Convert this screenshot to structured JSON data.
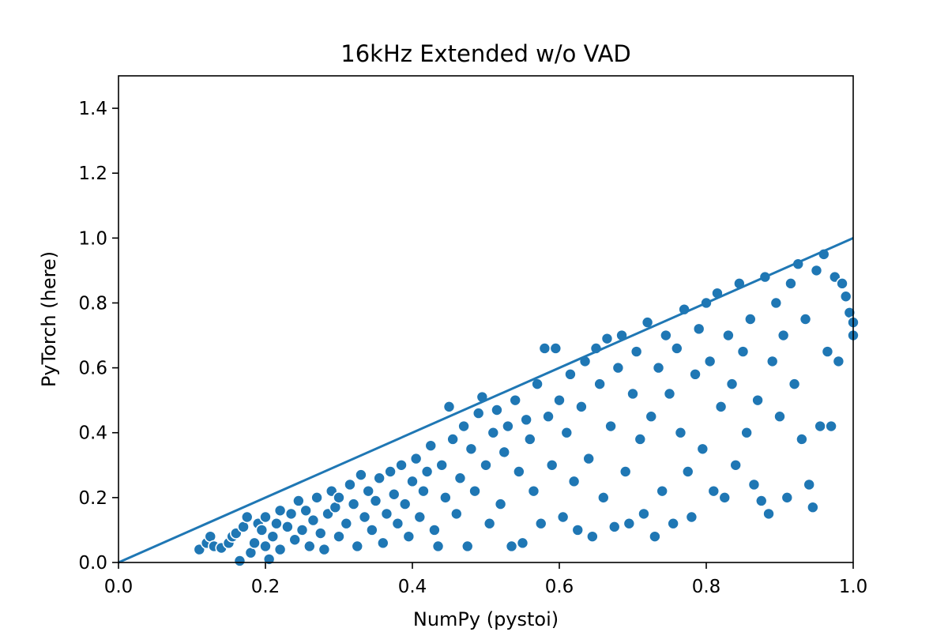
{
  "chart_data": {
    "type": "scatter",
    "title": "16kHz Extended w/o VAD",
    "xlabel": "NumPy (pystoi)",
    "ylabel": "PyTorch (here)",
    "xlim": [
      0.0,
      1.0
    ],
    "ylim": [
      0.0,
      1.5
    ],
    "xticks": [
      "0.0",
      "0.2",
      "0.4",
      "0.6",
      "0.8",
      "1.0"
    ],
    "xtick_values": [
      0.0,
      0.2,
      0.4,
      0.6,
      0.8,
      1.0
    ],
    "yticks": [
      "0.0",
      "0.2",
      "0.4",
      "0.6",
      "0.8",
      "1.0",
      "1.2",
      "1.4"
    ],
    "ytick_values": [
      0.0,
      0.2,
      0.4,
      0.6,
      0.8,
      1.0,
      1.2,
      1.4
    ],
    "grid": false,
    "colors": {
      "marker": "#1f77b4",
      "marker_edge": "#ffffff",
      "line": "#1f77b4"
    },
    "reference_line": {
      "name": "y = x",
      "x": [
        0.0,
        1.0
      ],
      "y": [
        0.0,
        1.0
      ]
    },
    "series": [
      {
        "name": "samples",
        "points": [
          [
            0.11,
            0.04
          ],
          [
            0.12,
            0.06
          ],
          [
            0.125,
            0.08
          ],
          [
            0.13,
            0.05
          ],
          [
            0.14,
            0.045
          ],
          [
            0.15,
            0.06
          ],
          [
            0.155,
            0.08
          ],
          [
            0.16,
            0.09
          ],
          [
            0.165,
            0.005
          ],
          [
            0.17,
            0.11
          ],
          [
            0.175,
            0.14
          ],
          [
            0.18,
            0.03
          ],
          [
            0.185,
            0.06
          ],
          [
            0.19,
            0.12
          ],
          [
            0.195,
            0.1
          ],
          [
            0.2,
            0.05
          ],
          [
            0.2,
            0.14
          ],
          [
            0.205,
            0.01
          ],
          [
            0.21,
            0.08
          ],
          [
            0.215,
            0.12
          ],
          [
            0.22,
            0.16
          ],
          [
            0.22,
            0.04
          ],
          [
            0.23,
            0.11
          ],
          [
            0.235,
            0.15
          ],
          [
            0.24,
            0.07
          ],
          [
            0.245,
            0.19
          ],
          [
            0.25,
            0.1
          ],
          [
            0.255,
            0.16
          ],
          [
            0.26,
            0.05
          ],
          [
            0.265,
            0.13
          ],
          [
            0.27,
            0.2
          ],
          [
            0.275,
            0.09
          ],
          [
            0.28,
            0.04
          ],
          [
            0.285,
            0.15
          ],
          [
            0.29,
            0.22
          ],
          [
            0.295,
            0.17
          ],
          [
            0.3,
            0.2
          ],
          [
            0.3,
            0.08
          ],
          [
            0.31,
            0.12
          ],
          [
            0.315,
            0.24
          ],
          [
            0.32,
            0.18
          ],
          [
            0.325,
            0.05
          ],
          [
            0.33,
            0.27
          ],
          [
            0.335,
            0.14
          ],
          [
            0.34,
            0.22
          ],
          [
            0.345,
            0.1
          ],
          [
            0.35,
            0.19
          ],
          [
            0.355,
            0.26
          ],
          [
            0.36,
            0.06
          ],
          [
            0.365,
            0.15
          ],
          [
            0.37,
            0.28
          ],
          [
            0.375,
            0.21
          ],
          [
            0.38,
            0.12
          ],
          [
            0.385,
            0.3
          ],
          [
            0.39,
            0.18
          ],
          [
            0.395,
            0.08
          ],
          [
            0.4,
            0.25
          ],
          [
            0.405,
            0.32
          ],
          [
            0.41,
            0.14
          ],
          [
            0.415,
            0.22
          ],
          [
            0.42,
            0.28
          ],
          [
            0.425,
            0.36
          ],
          [
            0.43,
            0.1
          ],
          [
            0.435,
            0.05
          ],
          [
            0.44,
            0.3
          ],
          [
            0.445,
            0.2
          ],
          [
            0.45,
            0.48
          ],
          [
            0.455,
            0.38
          ],
          [
            0.46,
            0.15
          ],
          [
            0.465,
            0.26
          ],
          [
            0.47,
            0.42
          ],
          [
            0.475,
            0.05
          ],
          [
            0.48,
            0.35
          ],
          [
            0.485,
            0.22
          ],
          [
            0.49,
            0.46
          ],
          [
            0.495,
            0.51
          ],
          [
            0.5,
            0.3
          ],
          [
            0.505,
            0.12
          ],
          [
            0.51,
            0.4
          ],
          [
            0.515,
            0.47
          ],
          [
            0.52,
            0.18
          ],
          [
            0.525,
            0.34
          ],
          [
            0.53,
            0.42
          ],
          [
            0.535,
            0.05
          ],
          [
            0.54,
            0.5
          ],
          [
            0.545,
            0.28
          ],
          [
            0.55,
            0.06
          ],
          [
            0.555,
            0.44
          ],
          [
            0.56,
            0.38
          ],
          [
            0.565,
            0.22
          ],
          [
            0.57,
            0.55
          ],
          [
            0.575,
            0.12
          ],
          [
            0.58,
            0.66
          ],
          [
            0.585,
            0.45
          ],
          [
            0.59,
            0.3
          ],
          [
            0.595,
            0.66
          ],
          [
            0.6,
            0.5
          ],
          [
            0.605,
            0.14
          ],
          [
            0.61,
            0.4
          ],
          [
            0.615,
            0.58
          ],
          [
            0.62,
            0.25
          ],
          [
            0.625,
            0.1
          ],
          [
            0.63,
            0.48
          ],
          [
            0.635,
            0.62
          ],
          [
            0.64,
            0.32
          ],
          [
            0.645,
            0.08
          ],
          [
            0.65,
            0.66
          ],
          [
            0.655,
            0.55
          ],
          [
            0.66,
            0.2
          ],
          [
            0.665,
            0.69
          ],
          [
            0.67,
            0.42
          ],
          [
            0.675,
            0.11
          ],
          [
            0.68,
            0.6
          ],
          [
            0.685,
            0.7
          ],
          [
            0.69,
            0.28
          ],
          [
            0.695,
            0.12
          ],
          [
            0.7,
            0.52
          ],
          [
            0.705,
            0.65
          ],
          [
            0.71,
            0.38
          ],
          [
            0.715,
            0.15
          ],
          [
            0.72,
            0.74
          ],
          [
            0.725,
            0.45
          ],
          [
            0.73,
            0.08
          ],
          [
            0.735,
            0.6
          ],
          [
            0.74,
            0.22
          ],
          [
            0.745,
            0.7
          ],
          [
            0.75,
            0.52
          ],
          [
            0.755,
            0.12
          ],
          [
            0.76,
            0.66
          ],
          [
            0.765,
            0.4
          ],
          [
            0.77,
            0.78
          ],
          [
            0.775,
            0.28
          ],
          [
            0.78,
            0.14
          ],
          [
            0.785,
            0.58
          ],
          [
            0.79,
            0.72
          ],
          [
            0.795,
            0.35
          ],
          [
            0.8,
            0.8
          ],
          [
            0.805,
            0.62
          ],
          [
            0.81,
            0.22
          ],
          [
            0.815,
            0.83
          ],
          [
            0.82,
            0.48
          ],
          [
            0.825,
            0.2
          ],
          [
            0.83,
            0.7
          ],
          [
            0.835,
            0.55
          ],
          [
            0.84,
            0.3
          ],
          [
            0.845,
            0.86
          ],
          [
            0.85,
            0.65
          ],
          [
            0.855,
            0.4
          ],
          [
            0.86,
            0.75
          ],
          [
            0.865,
            0.24
          ],
          [
            0.87,
            0.5
          ],
          [
            0.875,
            0.19
          ],
          [
            0.88,
            0.88
          ],
          [
            0.885,
            0.15
          ],
          [
            0.89,
            0.62
          ],
          [
            0.895,
            0.8
          ],
          [
            0.9,
            0.45
          ],
          [
            0.905,
            0.7
          ],
          [
            0.91,
            0.2
          ],
          [
            0.915,
            0.86
          ],
          [
            0.92,
            0.55
          ],
          [
            0.925,
            0.92
          ],
          [
            0.93,
            0.38
          ],
          [
            0.935,
            0.75
          ],
          [
            0.94,
            0.24
          ],
          [
            0.945,
            0.17
          ],
          [
            0.95,
            0.9
          ],
          [
            0.955,
            0.42
          ],
          [
            0.96,
            0.95
          ],
          [
            0.965,
            0.65
          ],
          [
            0.97,
            0.42
          ],
          [
            0.975,
            0.88
          ],
          [
            0.98,
            0.62
          ],
          [
            0.985,
            0.86
          ],
          [
            0.99,
            0.82
          ],
          [
            0.995,
            0.77
          ],
          [
            1.0,
            0.7
          ],
          [
            1.0,
            0.74
          ]
        ]
      }
    ]
  }
}
